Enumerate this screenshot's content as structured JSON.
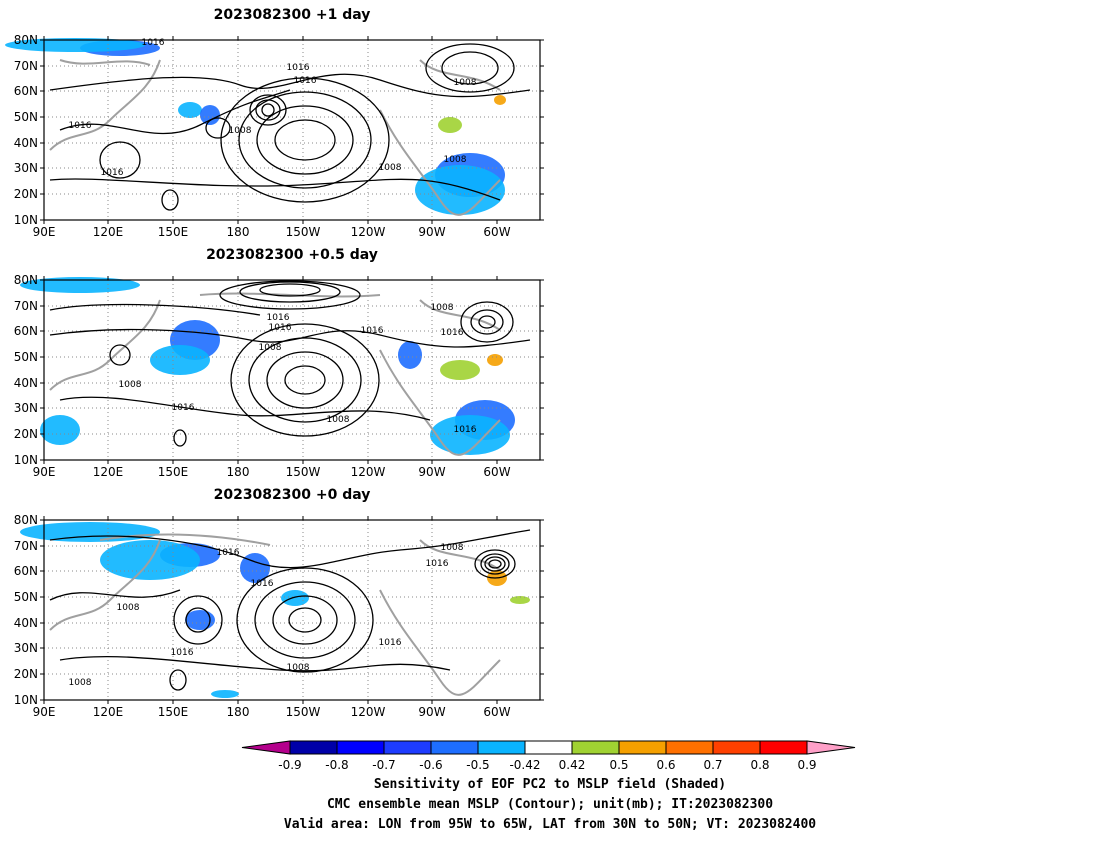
{
  "panels": [
    {
      "title": "2023082300  +1 day",
      "contour_labels": [
        "1016",
        "1016",
        "1016",
        "1008",
        "1016",
        "1008",
        "1008",
        "1008",
        "1016"
      ]
    },
    {
      "title": "2023082300  +0.5 day",
      "contour_labels": [
        "1016",
        "1016",
        "1008",
        "1016",
        "1008",
        "1016",
        "1008",
        "1016",
        "1008",
        "1016"
      ]
    },
    {
      "title": "2023082300  +0 day",
      "contour_labels": [
        "1016",
        "1016",
        "1008",
        "1008",
        "1016",
        "1016",
        "1008",
        "1016",
        "1008"
      ]
    }
  ],
  "axes": {
    "lat_ticks": [
      "80N",
      "70N",
      "60N",
      "50N",
      "40N",
      "30N",
      "20N",
      "10N"
    ],
    "lon_ticks": [
      "90E",
      "120E",
      "150E",
      "180",
      "150W",
      "120W",
      "90W",
      "60W"
    ]
  },
  "colorbar": {
    "labels": [
      "-0.9",
      "-0.8",
      "-0.7",
      "-0.6",
      "-0.5",
      "-0.42",
      "0.42",
      "0.5",
      "0.6",
      "0.7",
      "0.8",
      "0.9"
    ],
    "colors": [
      "#0000a8",
      "#0000ff",
      "#1e3cff",
      "#1e6eff",
      "#0ab4ff",
      "#ffffff",
      "#a0d232",
      "#f5a000",
      "#ff7000",
      "#ff4000",
      "#ff0000"
    ],
    "low_end_color": "#b4008c",
    "high_end_color": "#ffa0c8"
  },
  "caption": {
    "line1": "Sensitivity of EOF PC2 to MSLP field (Shaded)",
    "line2": "CMC ensemble mean MSLP (Contour); unit(mb); IT:2023082300",
    "line3": "Valid area: LON from 95W to 65W, LAT from 30N to 50N; VT: 2023082400"
  }
}
